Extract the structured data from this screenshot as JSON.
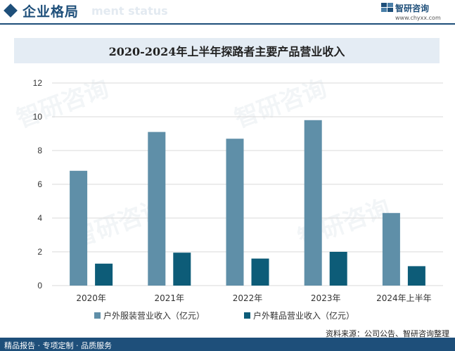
{
  "header": {
    "title": "企业格局",
    "subtitle": "ment status",
    "brand_name": "智研咨询",
    "brand_url": "www.chyxx.com"
  },
  "watermark": "智研咨询",
  "chart_data": {
    "type": "bar",
    "title": "2020-2024年上半年探路者主要产品营业收入",
    "categories": [
      "2020年",
      "2021年",
      "2022年",
      "2023年",
      "2024年上半年"
    ],
    "series": [
      {
        "name": "户外服装营业收入（亿元）",
        "color": "#5f8fa8",
        "values": [
          6.8,
          9.1,
          8.7,
          9.8,
          4.3
        ]
      },
      {
        "name": "户外鞋品营业收入（亿元）",
        "color": "#0d5c78",
        "values": [
          1.3,
          1.95,
          1.6,
          2.0,
          1.15
        ]
      }
    ],
    "yticks": [
      "0",
      "2",
      "4",
      "6",
      "8",
      "10",
      "12"
    ],
    "ylim": [
      0,
      12
    ],
    "grid": true,
    "legend": "bottom"
  },
  "footer": {
    "left": "精品报告 · 专项定制 · 品质服务",
    "source": "资料来源：公司公告、智研咨询整理"
  }
}
